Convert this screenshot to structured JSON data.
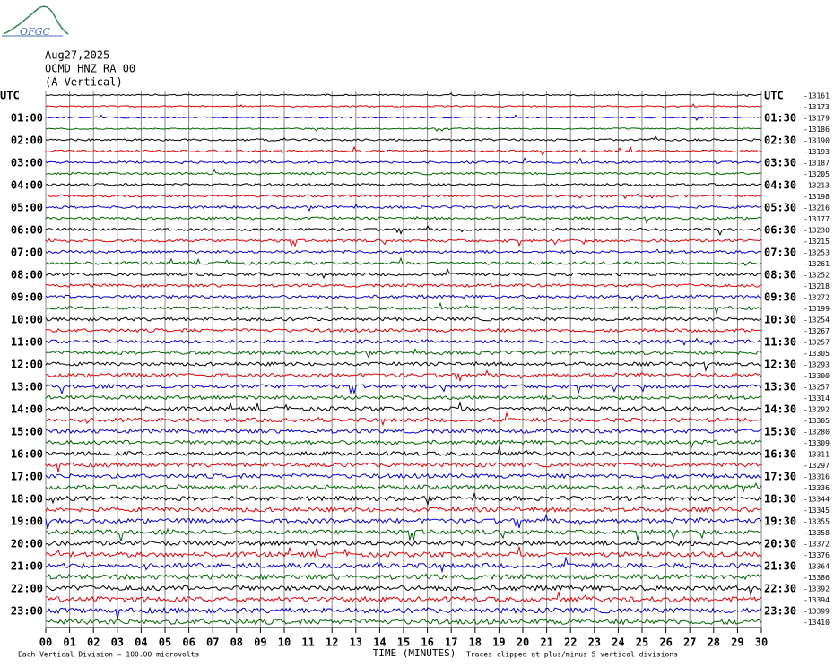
{
  "header": {
    "logo": "OFGC",
    "date": "Aug27,2025",
    "station": "OCMD HNZ RA 00",
    "component": "(A Vertical)"
  },
  "left_labels": [
    "UTC",
    "01:00",
    "02:00",
    "03:00",
    "04:00",
    "05:00",
    "06:00",
    "07:00",
    "08:00",
    "09:00",
    "10:00",
    "11:00",
    "12:00",
    "13:00",
    "14:00",
    "15:00",
    "16:00",
    "17:00",
    "18:00",
    "19:00",
    "20:00",
    "21:00",
    "22:00",
    "23:00"
  ],
  "right_labels": [
    "UTC",
    "01:30",
    "02:30",
    "03:30",
    "04:30",
    "05:30",
    "06:30",
    "07:30",
    "08:30",
    "09:30",
    "10:30",
    "11:30",
    "12:30",
    "13:30",
    "14:30",
    "15:30",
    "16:30",
    "17:30",
    "18:30",
    "19:30",
    "20:30",
    "21:30",
    "22:30",
    "23:30"
  ],
  "offsets": [
    -13161,
    -13173,
    -13179,
    -13186,
    -13190,
    -13193,
    -13187,
    -13205,
    -13213,
    -13198,
    -13216,
    -13177,
    -13230,
    -13215,
    -13253,
    -13261,
    -13252,
    -13218,
    -13272,
    -13199,
    -13254,
    -13267,
    -13257,
    -13305,
    -13293,
    -13300,
    -13257,
    -13314,
    -13292,
    -13305,
    -13280,
    -13309,
    -13311,
    -13297,
    -13316,
    -13336,
    -13344,
    -13345,
    -13355,
    -13358,
    -13372,
    -13376,
    -13364,
    -13386,
    -13392,
    -13394,
    -13399,
    -13410
  ],
  "trace_colors": [
    "#000000",
    "#e00000",
    "#0000d0",
    "#006400"
  ],
  "x_axis": {
    "ticks": [
      "00",
      "01",
      "02",
      "03",
      "04",
      "05",
      "06",
      "07",
      "08",
      "09",
      "10",
      "11",
      "12",
      "13",
      "14",
      "15",
      "16",
      "17",
      "18",
      "19",
      "20",
      "21",
      "22",
      "23",
      "24",
      "25",
      "26",
      "27",
      "28",
      "29",
      "30"
    ],
    "title": "TIME (MINUTES)"
  },
  "footer": {
    "scale": "Each Vertical Division =  100.00 microvolts",
    "clip": "Traces clipped at plus/minus 5 vertical divisions"
  }
}
